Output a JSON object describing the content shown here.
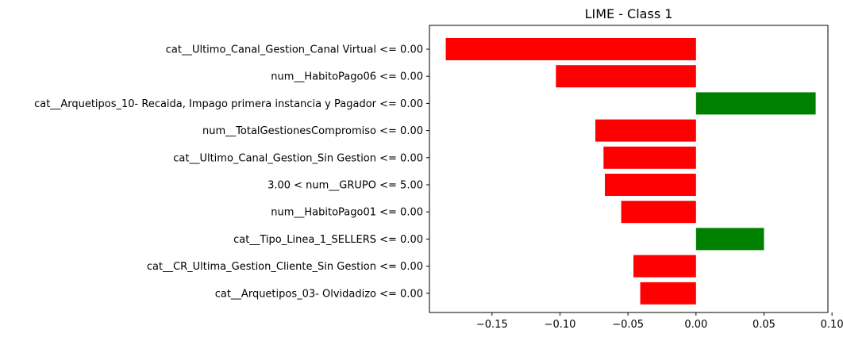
{
  "chart_data": {
    "type": "bar",
    "orientation": "horizontal",
    "title": "LIME - Class 1",
    "xlabel": "",
    "ylabel": "",
    "xlim": [
      -0.196,
      0.097
    ],
    "grid": false,
    "xticks": [
      -0.15,
      -0.1,
      -0.05,
      0.0,
      0.05,
      0.1
    ],
    "xtick_labels": [
      "−0.15",
      "−0.10",
      "−0.05",
      "0.00",
      "0.05",
      "0.10"
    ],
    "categories": [
      "cat__Ultimo_Canal_Gestion_Canal Virtual <= 0.00",
      "num__HabitoPago06 <= 0.00",
      "cat__Arquetipos_10- Recaida, Impago primera instancia y Pagador <= 0.00",
      "num__TotalGestionesCompromiso <= 0.00",
      "cat__Ultimo_Canal_Gestion_Sin Gestion <= 0.00",
      "3.00 < num__GRUPO <= 5.00",
      "num__HabitoPago01 <= 0.00",
      "cat__Tipo_Linea_1_SELLERS <= 0.00",
      "cat__CR_Ultima_Gestion_Cliente_Sin Gestion <= 0.00",
      "cat__Arquetipos_03- Olvidadizo <= 0.00"
    ],
    "values": [
      -0.184,
      -0.103,
      0.088,
      -0.074,
      -0.068,
      -0.067,
      -0.055,
      0.05,
      -0.046,
      -0.041
    ],
    "colors": {
      "positive": "#008000",
      "negative": "#ff0000"
    }
  }
}
